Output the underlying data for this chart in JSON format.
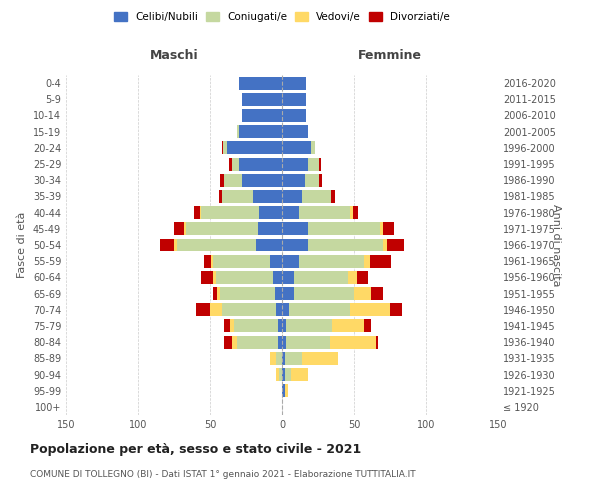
{
  "age_groups": [
    "100+",
    "95-99",
    "90-94",
    "85-89",
    "80-84",
    "75-79",
    "70-74",
    "65-69",
    "60-64",
    "55-59",
    "50-54",
    "45-49",
    "40-44",
    "35-39",
    "30-34",
    "25-29",
    "20-24",
    "15-19",
    "10-14",
    "5-9",
    "0-4"
  ],
  "birth_years": [
    "≤ 1920",
    "1921-1925",
    "1926-1930",
    "1931-1935",
    "1936-1940",
    "1941-1945",
    "1946-1950",
    "1951-1955",
    "1956-1960",
    "1961-1965",
    "1966-1970",
    "1971-1975",
    "1976-1980",
    "1981-1985",
    "1986-1990",
    "1991-1995",
    "1996-2000",
    "2001-2005",
    "2006-2010",
    "2011-2015",
    "2016-2020"
  ],
  "male_celibi": [
    0,
    0,
    0,
    0,
    3,
    3,
    4,
    5,
    6,
    8,
    18,
    17,
    16,
    20,
    28,
    30,
    38,
    30,
    28,
    28,
    30
  ],
  "male_coniugati": [
    0,
    0,
    2,
    4,
    28,
    30,
    38,
    38,
    40,
    40,
    55,
    50,
    40,
    22,
    12,
    5,
    3,
    1,
    0,
    0,
    0
  ],
  "male_vedovi": [
    0,
    0,
    2,
    4,
    4,
    3,
    8,
    2,
    2,
    1,
    2,
    1,
    1,
    0,
    0,
    0,
    0,
    0,
    0,
    0,
    0
  ],
  "male_divorziati": [
    0,
    0,
    0,
    0,
    5,
    4,
    10,
    3,
    8,
    5,
    10,
    7,
    4,
    2,
    3,
    2,
    1,
    0,
    0,
    0,
    0
  ],
  "female_celibi": [
    0,
    2,
    2,
    2,
    3,
    3,
    5,
    8,
    8,
    12,
    18,
    18,
    12,
    14,
    16,
    18,
    20,
    18,
    17,
    17,
    17
  ],
  "female_coniugati": [
    0,
    0,
    4,
    12,
    30,
    32,
    42,
    42,
    38,
    45,
    52,
    50,
    35,
    20,
    10,
    8,
    3,
    0,
    0,
    0,
    0
  ],
  "female_vedovi": [
    0,
    2,
    12,
    25,
    32,
    22,
    28,
    12,
    6,
    4,
    3,
    2,
    2,
    0,
    0,
    0,
    0,
    0,
    0,
    0,
    0
  ],
  "female_divorziati": [
    0,
    0,
    0,
    0,
    2,
    5,
    8,
    8,
    8,
    15,
    12,
    8,
    4,
    3,
    2,
    1,
    0,
    0,
    0,
    0,
    0
  ],
  "colors": {
    "celibi": "#4472C4",
    "coniugati": "#c5d8a0",
    "vedovi": "#FFD966",
    "divorziati": "#C00000"
  },
  "title": "Popolazione per età, sesso e stato civile - 2021",
  "subtitle": "COMUNE DI TOLLEGNO (BI) - Dati ISTAT 1° gennaio 2021 - Elaborazione TUTTITALIA.IT",
  "ylabel_left": "Fasce di età",
  "ylabel_right": "Anni di nascita",
  "xlabel_left": "Maschi",
  "xlabel_right": "Femmine",
  "xlim": 150,
  "bg_color": "#ffffff",
  "grid_color": "#cccccc"
}
